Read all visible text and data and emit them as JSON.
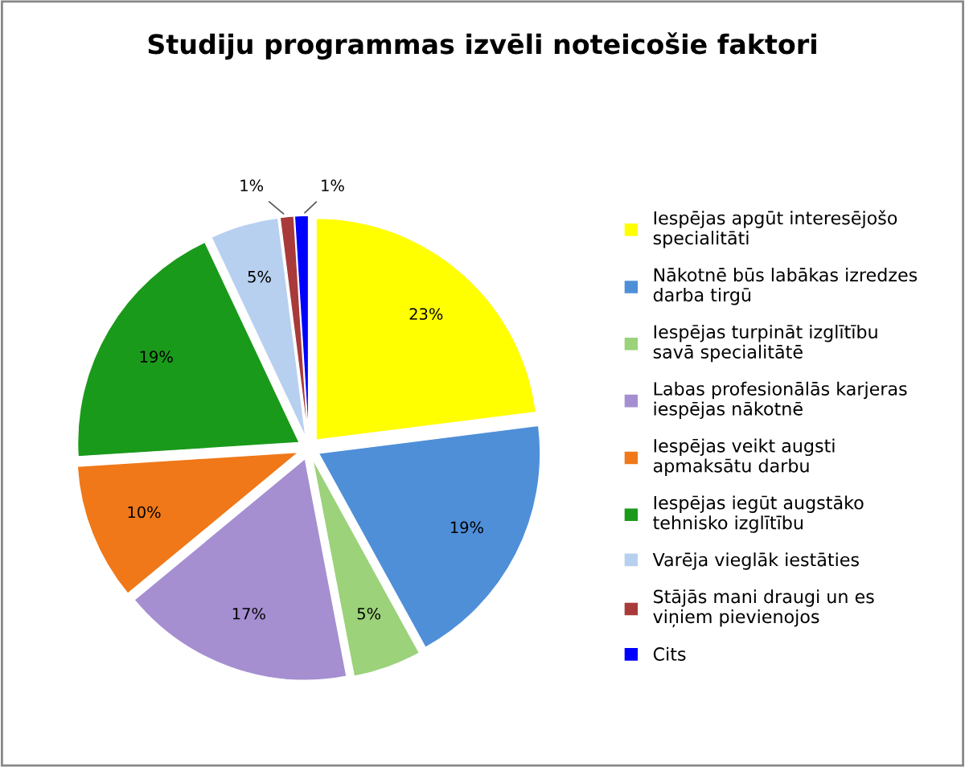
{
  "chart_data": {
    "type": "pie",
    "title": "Studiju programmas izvēli noteicošie faktori",
    "categories": [
      "Iespējas apgūt interesējošo specialitāti",
      "Nākotnē būs labākas izredzes darba tirgū",
      "Iespējas turpināt izglītību savā specialitātē",
      "Labas profesionālās karjeras iespējas nākotnē",
      "Iespējas veikt augsti apmaksātu darbu",
      "Iespējas iegūt augstāko tehnisko izglītību",
      "Varēja vieglāk iestāties",
      "Stājās mani draugi un es viņiem pievienojos",
      "Cits"
    ],
    "values": [
      23,
      19,
      5,
      17,
      10,
      19,
      5,
      1,
      1
    ],
    "colors": [
      "#ffff00",
      "#4f8fd8",
      "#9bd27a",
      "#a58fd0",
      "#f07818",
      "#1a9a1a",
      "#b8d0f0",
      "#a83a3a",
      "#0000ff"
    ],
    "value_labels": [
      "23%",
      "19%",
      "5%",
      "17%",
      "10%",
      "19%",
      "5%",
      "1%",
      "1%"
    ],
    "legend": "right"
  }
}
